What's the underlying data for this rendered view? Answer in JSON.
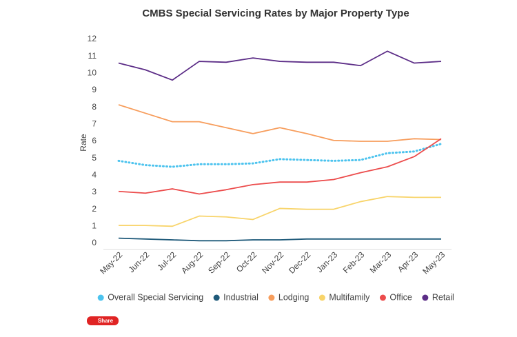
{
  "chart_data": {
    "type": "line",
    "title": "CMBS Special Servicing Rates by Major Property Type",
    "y_label": "Rate",
    "categories": [
      "May-22",
      "Jun-22",
      "Jul-22",
      "Aug-22",
      "Sep-22",
      "Oct-22",
      "Nov-22",
      "Dec-22",
      "Jan-23",
      "Feb-23",
      "Mar-23",
      "Apr-23",
      "May-23"
    ],
    "series": [
      {
        "name": "Overall Special Servicing",
        "color": "#4cc3ee",
        "style": "dotted",
        "values": [
          4.85,
          4.6,
          4.5,
          4.65,
          4.65,
          4.7,
          4.95,
          4.9,
          4.85,
          4.9,
          5.3,
          5.4,
          5.85
        ]
      },
      {
        "name": "Industrial",
        "color": "#1f5a7a",
        "style": "solid",
        "values": [
          0.3,
          0.25,
          0.2,
          0.15,
          0.15,
          0.2,
          0.2,
          0.25,
          0.25,
          0.25,
          0.25,
          0.25,
          0.25
        ]
      },
      {
        "name": "Lodging",
        "color": "#f79d5c",
        "style": "solid",
        "values": [
          8.15,
          7.65,
          7.15,
          7.15,
          6.8,
          6.45,
          6.8,
          6.45,
          6.05,
          6.0,
          6.0,
          6.15,
          6.1
        ]
      },
      {
        "name": "Multifamily",
        "color": "#f8d46a",
        "style": "solid",
        "values": [
          1.05,
          1.05,
          1.0,
          1.6,
          1.55,
          1.4,
          2.05,
          2.0,
          2.0,
          2.45,
          2.75,
          2.7,
          2.7
        ]
      },
      {
        "name": "Office",
        "color": "#ec4c4c",
        "style": "solid",
        "values": [
          3.05,
          2.95,
          3.2,
          2.9,
          3.15,
          3.45,
          3.6,
          3.6,
          3.75,
          4.15,
          4.5,
          5.1,
          6.15
        ]
      },
      {
        "name": "Retail",
        "color": "#5c2d87",
        "style": "solid",
        "values": [
          10.6,
          10.2,
          9.6,
          10.7,
          10.65,
          10.9,
          10.7,
          10.65,
          10.65,
          10.45,
          11.3,
          10.6,
          10.7
        ]
      }
    ],
    "ylim": [
      0,
      12
    ],
    "yticks": [
      0,
      1,
      2,
      3,
      4,
      5,
      6,
      7,
      8,
      9,
      10,
      11,
      12
    ],
    "grid": false
  },
  "share_button": "Share"
}
